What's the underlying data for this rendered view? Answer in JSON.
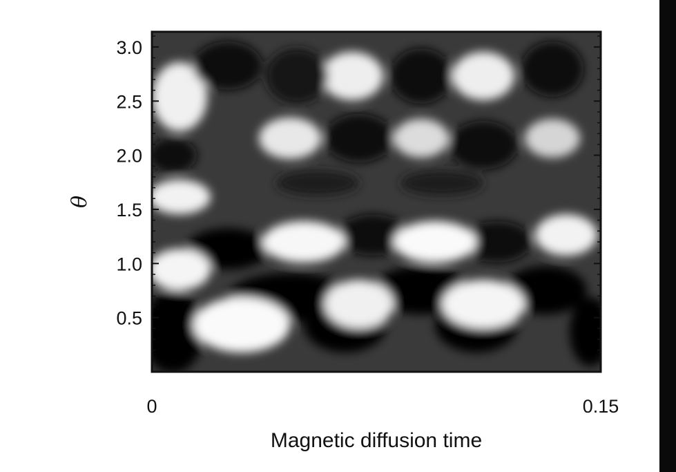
{
  "chart_data": {
    "type": "heatmap",
    "title": "",
    "xlabel": "Magnetic diffusion time",
    "ylabel": "θ",
    "xlim": [
      0,
      0.15
    ],
    "ylim": [
      0,
      3.14
    ],
    "x_tick_labels": [
      "0",
      "0.15"
    ],
    "x_ticks": [
      0,
      0.15
    ],
    "y_tick_labels": [
      "0.5",
      "1.0",
      "1.5",
      "2.0",
      "2.5",
      "3.0"
    ],
    "y_ticks": [
      0.5,
      1.0,
      1.5,
      2.0,
      2.5,
      3.0
    ],
    "colormap": "grayscale",
    "pattern": {
      "description": "butterfly-like diagonal bands migrating toward lower theta over time",
      "cycles_visible": 3.5,
      "period_fraction": 0.3
    },
    "colors": {
      "low": "#000000",
      "high": "#ffffff",
      "frame": "#111111",
      "right_bar": "#0a0a0a"
    }
  }
}
